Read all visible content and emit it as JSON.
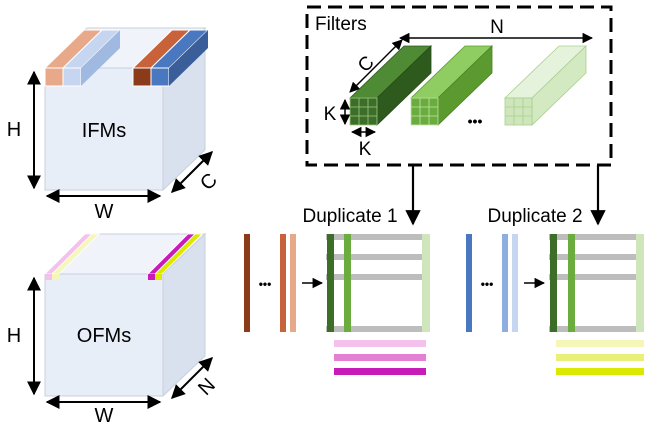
{
  "ifm": {
    "title": "IFMs",
    "height_label": "H",
    "width_label": "W",
    "depth_label": "C"
  },
  "ofm": {
    "title": "OFMs",
    "height_label": "H",
    "width_label": "W",
    "depth_label": "N"
  },
  "filters": {
    "title": "Filters",
    "n_label": "N",
    "c_label": "C",
    "k_vertical_label": "K",
    "k_horizontal_label": "K",
    "ellipsis": "•••"
  },
  "duplicate_1": {
    "label": "Duplicate 1",
    "ellipsis": "•••"
  },
  "duplicate_2": {
    "label": "Duplicate 2",
    "ellipsis": "•••"
  },
  "colors": {
    "cube_face": "#e8eef8",
    "cube_top": "#f0f3f9",
    "cube_side": "#d9e1ee",
    "brown_dark": "#8b3a1a",
    "brown_mid": "#c8623a",
    "brown_light": "#e8a88a",
    "blue_dark": "#4a78c0",
    "blue_mid": "#8eaee0",
    "blue_light": "#c6d6f0",
    "green_dark": "#3c6e2a",
    "green_mid": "#6aad3e",
    "green_light": "#cfe6bc",
    "pink_light": "#f4c0ec",
    "pink_mid": "#e380d4",
    "magenta": "#c81cb8",
    "yellow_light": "#f4f7b8",
    "yellow_mid": "#e8f07a",
    "yellow": "#dde800",
    "gray_row": "#bdbdbd"
  }
}
